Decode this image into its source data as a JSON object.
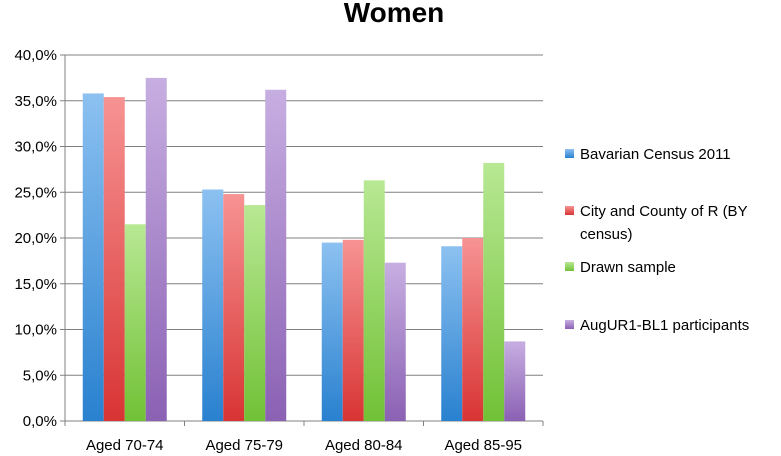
{
  "chart_data": {
    "type": "bar",
    "title": "Women",
    "xlabel": "",
    "ylabel": "",
    "categories": [
      "Aged 70-74",
      "Aged 75-79",
      "Aged 80-84",
      "Aged 85-95"
    ],
    "ylim": [
      0,
      40
    ],
    "yticks": [
      0,
      5,
      10,
      15,
      20,
      25,
      30,
      35,
      40
    ],
    "ytick_labels": [
      "0,0%",
      "5,0%",
      "10,0%",
      "15,0%",
      "20,0%",
      "25,0%",
      "30,0%",
      "35,0%",
      "40,0%"
    ],
    "grid": true,
    "legend_position": "right",
    "series": [
      {
        "name": "Bavarian Census 2011",
        "values": [
          35.8,
          25.3,
          19.5,
          19.1
        ],
        "color": "#2e8fe6"
      },
      {
        "name": "City and County of R (BY census)",
        "values": [
          35.4,
          24.8,
          19.8,
          20.0
        ],
        "color": "#f03a3a"
      },
      {
        "name": "Drawn sample",
        "values": [
          21.5,
          23.6,
          26.3,
          28.2
        ],
        "color": "#7ed63c"
      },
      {
        "name": "AugUR1-BL1 participants",
        "values": [
          37.5,
          36.2,
          17.3,
          8.7
        ],
        "color": "#9a6cc8"
      }
    ],
    "legend_lines": [
      [
        "Bavarian Census 2011"
      ],
      [
        "City and County of R (BY",
        "census)"
      ],
      [
        "Drawn sample"
      ],
      [
        "AugUR1-BL1 participants"
      ]
    ]
  }
}
